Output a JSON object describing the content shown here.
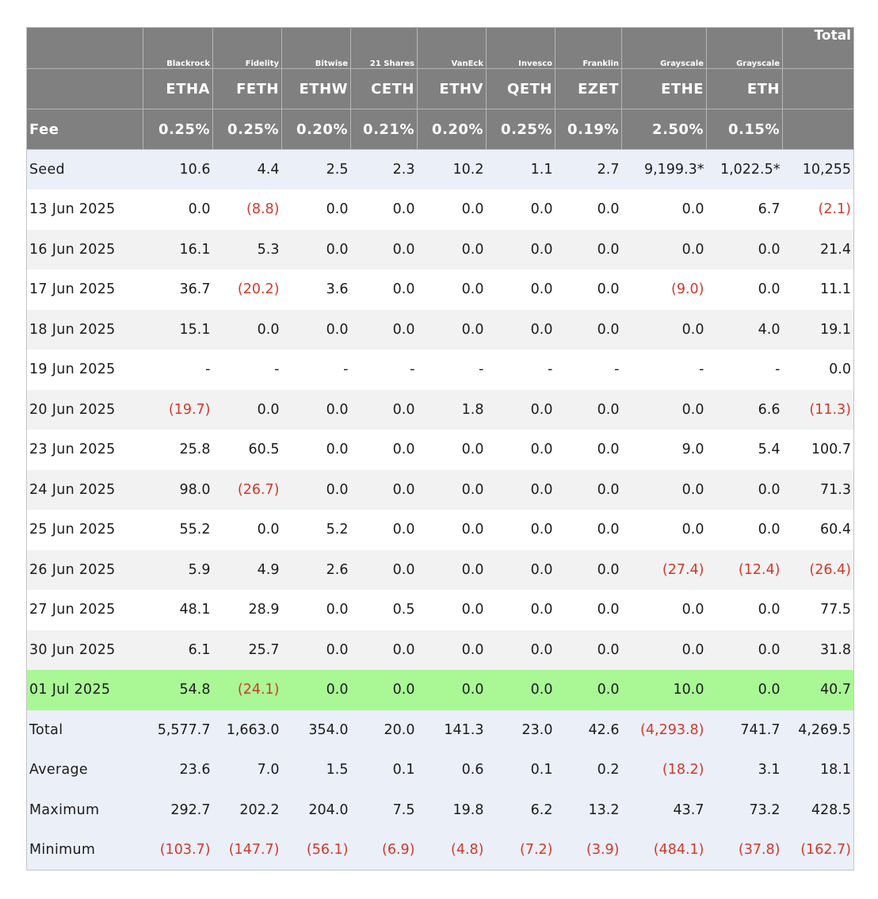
{
  "header": {
    "issuers": [
      "Blackrock",
      "Fidelity",
      "Bitwise",
      "21 Shares",
      "VanEck",
      "Invesco",
      "Franklin",
      "Grayscale",
      "Grayscale"
    ],
    "total_label": "Total",
    "tickers": [
      "ETHA",
      "FETH",
      "ETHW",
      "CETH",
      "ETHV",
      "QETH",
      "EZET",
      "ETHE",
      "ETH"
    ],
    "fee_label": "Fee",
    "fees": [
      "0.25%",
      "0.25%",
      "0.20%",
      "0.21%",
      "0.20%",
      "0.25%",
      "0.19%",
      "2.50%",
      "0.15%"
    ]
  },
  "rows": [
    {
      "label": "Seed",
      "values": [
        "10.6",
        "4.4",
        "2.5",
        "2.3",
        "10.2",
        "1.1",
        "2.7",
        "9,199.3*",
        "1,022.5*",
        "10,255"
      ]
    },
    {
      "label": "13 Jun 2025",
      "values": [
        "0.0",
        "(8.8)",
        "0.0",
        "0.0",
        "0.0",
        "0.0",
        "0.0",
        "0.0",
        "6.7",
        "(2.1)"
      ]
    },
    {
      "label": "16 Jun 2025",
      "values": [
        "16.1",
        "5.3",
        "0.0",
        "0.0",
        "0.0",
        "0.0",
        "0.0",
        "0.0",
        "0.0",
        "21.4"
      ]
    },
    {
      "label": "17 Jun 2025",
      "values": [
        "36.7",
        "(20.2)",
        "3.6",
        "0.0",
        "0.0",
        "0.0",
        "0.0",
        "(9.0)",
        "0.0",
        "11.1"
      ]
    },
    {
      "label": "18 Jun 2025",
      "values": [
        "15.1",
        "0.0",
        "0.0",
        "0.0",
        "0.0",
        "0.0",
        "0.0",
        "0.0",
        "4.0",
        "19.1"
      ]
    },
    {
      "label": "19 Jun 2025",
      "values": [
        "-",
        "-",
        "-",
        "-",
        "-",
        "-",
        "-",
        "-",
        "-",
        "0.0"
      ]
    },
    {
      "label": "20 Jun 2025",
      "values": [
        "(19.7)",
        "0.0",
        "0.0",
        "0.0",
        "1.8",
        "0.0",
        "0.0",
        "0.0",
        "6.6",
        "(11.3)"
      ]
    },
    {
      "label": "23 Jun 2025",
      "values": [
        "25.8",
        "60.5",
        "0.0",
        "0.0",
        "0.0",
        "0.0",
        "0.0",
        "9.0",
        "5.4",
        "100.7"
      ]
    },
    {
      "label": "24 Jun 2025",
      "values": [
        "98.0",
        "(26.7)",
        "0.0",
        "0.0",
        "0.0",
        "0.0",
        "0.0",
        "0.0",
        "0.0",
        "71.3"
      ]
    },
    {
      "label": "25 Jun 2025",
      "values": [
        "55.2",
        "0.0",
        "5.2",
        "0.0",
        "0.0",
        "0.0",
        "0.0",
        "0.0",
        "0.0",
        "60.4"
      ]
    },
    {
      "label": "26 Jun 2025",
      "values": [
        "5.9",
        "4.9",
        "2.6",
        "0.0",
        "0.0",
        "0.0",
        "0.0",
        "(27.4)",
        "(12.4)",
        "(26.4)"
      ]
    },
    {
      "label": "27 Jun 2025",
      "values": [
        "48.1",
        "28.9",
        "0.0",
        "0.5",
        "0.0",
        "0.0",
        "0.0",
        "0.0",
        "0.0",
        "77.5"
      ]
    },
    {
      "label": "30 Jun 2025",
      "values": [
        "6.1",
        "25.7",
        "0.0",
        "0.0",
        "0.0",
        "0.0",
        "0.0",
        "0.0",
        "0.0",
        "31.8"
      ]
    },
    {
      "label": "01 Jul 2025",
      "values": [
        "54.8",
        "(24.1)",
        "0.0",
        "0.0",
        "0.0",
        "0.0",
        "0.0",
        "10.0",
        "0.0",
        "40.7"
      ]
    },
    {
      "label": "Total",
      "values": [
        "5,577.7",
        "1,663.0",
        "354.0",
        "20.0",
        "141.3",
        "23.0",
        "42.6",
        "(4,293.8)",
        "741.7",
        "4,269.5"
      ]
    },
    {
      "label": "Average",
      "values": [
        "23.6",
        "7.0",
        "1.5",
        "0.1",
        "0.6",
        "0.1",
        "0.2",
        "(18.2)",
        "3.1",
        "18.1"
      ]
    },
    {
      "label": "Maximum",
      "values": [
        "292.7",
        "202.2",
        "204.0",
        "7.5",
        "19.8",
        "6.2",
        "13.2",
        "43.7",
        "73.2",
        "428.5"
      ]
    },
    {
      "label": "Minimum",
      "values": [
        "(103.7)",
        "(147.7)",
        "(56.1)",
        "(6.9)",
        "(4.8)",
        "(7.2)",
        "(3.9)",
        "(484.1)",
        "(37.8)",
        "(162.7)"
      ]
    }
  ],
  "colors": {
    "header_bg": "#808080",
    "header_text": "#ffffff",
    "negative_text": "#cf3a2c",
    "row_blue": "#ebeff8",
    "row_grey": "#f2f2f2",
    "row_white": "#ffffff",
    "highlight_green": "#a9f895"
  }
}
